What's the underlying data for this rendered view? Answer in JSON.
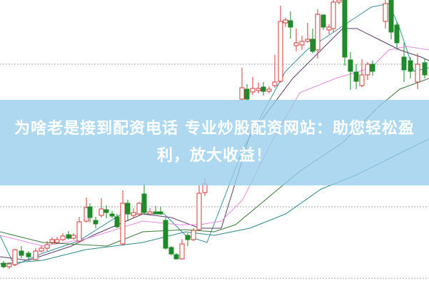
{
  "banner": {
    "title": "为啥老是接到配资电话 专业炒股配资网站：助您轻松盈利，放大收益！"
  },
  "chart_data": {
    "type": "candlestick",
    "grid": "horizontal dotted",
    "colors": {
      "up": "#d03a3a",
      "down": "#1e8a2a",
      "ma_lines": [
        "#3a8fa0",
        "#5a3a6a",
        "#e48be4",
        "#3a7a3a",
        "#2a8a8a"
      ]
    }
  }
}
